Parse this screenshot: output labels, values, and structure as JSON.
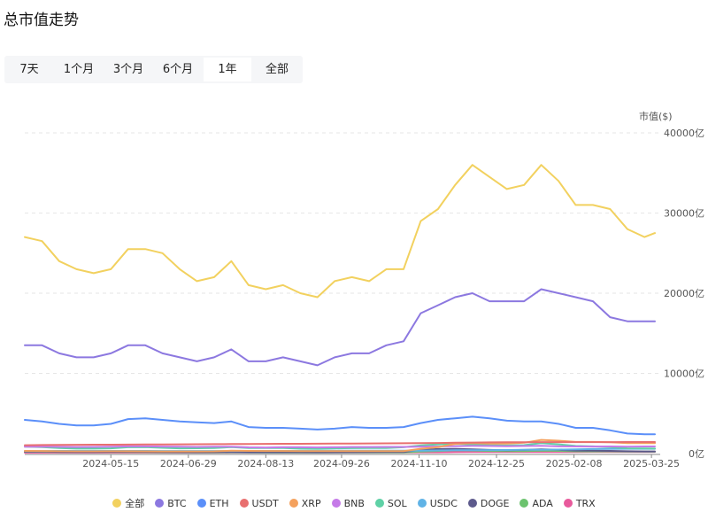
{
  "header": {
    "title": "总市值走势"
  },
  "tabs": [
    {
      "label": "7天",
      "active": false
    },
    {
      "label": "1个月",
      "active": false
    },
    {
      "label": "3个月",
      "active": false
    },
    {
      "label": "6个月",
      "active": false
    },
    {
      "label": "1年",
      "active": true
    },
    {
      "label": "全部",
      "active": false
    }
  ],
  "chart_data": {
    "type": "line",
    "ylabel": "市值($)",
    "ylim": [
      0,
      40000
    ],
    "yticks": [
      "0亿",
      "10000亿",
      "20000亿",
      "30000亿",
      "40000亿"
    ],
    "x_tick_labels": [
      "2024-05-15",
      "2024-06-29",
      "2024-08-13",
      "2024-09-26",
      "2024-11-10",
      "2024-12-25",
      "2025-02-08",
      "2025-03-25"
    ],
    "x": [
      "2024-03-26",
      "2024-04-05",
      "2024-04-15",
      "2024-04-25",
      "2024-05-05",
      "2024-05-15",
      "2024-05-25",
      "2024-06-04",
      "2024-06-14",
      "2024-06-24",
      "2024-07-04",
      "2024-07-14",
      "2024-07-24",
      "2024-08-03",
      "2024-08-13",
      "2024-08-23",
      "2024-09-02",
      "2024-09-12",
      "2024-09-22",
      "2024-10-02",
      "2024-10-12",
      "2024-10-22",
      "2024-11-01",
      "2024-11-11",
      "2024-11-21",
      "2024-12-01",
      "2024-12-11",
      "2024-12-21",
      "2024-12-31",
      "2025-01-10",
      "2025-01-20",
      "2025-01-30",
      "2025-02-09",
      "2025-02-19",
      "2025-03-01",
      "2025-03-11",
      "2025-03-21",
      "2025-03-27"
    ],
    "grid": true,
    "legend_position": "bottom",
    "series": [
      {
        "name": "全部",
        "color": "#f2d15f",
        "values": [
          27000,
          26500,
          24000,
          23000,
          22500,
          23000,
          25500,
          25500,
          25000,
          23000,
          21500,
          22000,
          24000,
          21000,
          20500,
          21000,
          20000,
          19500,
          21500,
          22000,
          21500,
          23000,
          23000,
          29000,
          30500,
          33500,
          36000,
          34500,
          33000,
          33500,
          36000,
          34000,
          31000,
          31000,
          30500,
          28000,
          27000,
          27500
        ]
      },
      {
        "name": "BTC",
        "color": "#8c78e0",
        "values": [
          13500,
          13500,
          12500,
          12000,
          12000,
          12500,
          13500,
          13500,
          12500,
          12000,
          11500,
          12000,
          13000,
          11500,
          11500,
          12000,
          11500,
          11000,
          12000,
          12500,
          12500,
          13500,
          14000,
          17500,
          18500,
          19500,
          20000,
          19000,
          19000,
          19000,
          20500,
          20000,
          19500,
          19000,
          17000,
          16500,
          16500,
          16500
        ]
      },
      {
        "name": "ETH",
        "color": "#5b8ff9",
        "values": [
          4200,
          4000,
          3700,
          3500,
          3500,
          3700,
          4300,
          4400,
          4200,
          4000,
          3900,
          3800,
          4000,
          3300,
          3200,
          3200,
          3100,
          3000,
          3100,
          3300,
          3200,
          3200,
          3300,
          3800,
          4200,
          4400,
          4600,
          4400,
          4100,
          4000,
          4000,
          3700,
          3200,
          3200,
          2900,
          2500,
          2400,
          2400
        ]
      },
      {
        "name": "USDT",
        "color": "#e86f6f",
        "values": [
          1040,
          1060,
          1080,
          1090,
          1100,
          1110,
          1120,
          1130,
          1140,
          1150,
          1160,
          1170,
          1180,
          1190,
          1200,
          1210,
          1220,
          1230,
          1240,
          1250,
          1260,
          1270,
          1280,
          1300,
          1320,
          1350,
          1370,
          1390,
          1400,
          1410,
          1420,
          1420,
          1430,
          1430,
          1430,
          1440,
          1440,
          1440
        ]
      },
      {
        "name": "XRP",
        "color": "#f4a15d",
        "values": [
          330,
          320,
          290,
          280,
          280,
          290,
          290,
          280,
          270,
          260,
          260,
          280,
          350,
          330,
          320,
          320,
          300,
          300,
          310,
          310,
          300,
          300,
          310,
          600,
          800,
          1200,
          1300,
          1250,
          1250,
          1350,
          1700,
          1600,
          1450,
          1450,
          1400,
          1300,
          1300,
          1300
        ]
      },
      {
        "name": "BNB",
        "color": "#c57ae8",
        "values": [
          850,
          870,
          840,
          820,
          830,
          850,
          900,
          900,
          870,
          860,
          830,
          850,
          860,
          770,
          750,
          780,
          780,
          760,
          790,
          820,
          820,
          830,
          830,
          860,
          880,
          920,
          950,
          940,
          920,
          940,
          960,
          900,
          880,
          870,
          880,
          860,
          880,
          880
        ]
      },
      {
        "name": "SOL",
        "color": "#5fd1a6",
        "values": [
          850,
          800,
          700,
          620,
          620,
          650,
          780,
          800,
          720,
          650,
          660,
          700,
          800,
          700,
          680,
          700,
          620,
          600,
          650,
          670,
          680,
          700,
          780,
          1000,
          1150,
          1200,
          1150,
          1050,
          1000,
          1050,
          1300,
          1150,
          950,
          900,
          800,
          650,
          630,
          620
        ]
      },
      {
        "name": "USDC",
        "color": "#60b3e6",
        "values": [
          320,
          320,
          330,
          330,
          330,
          330,
          330,
          330,
          320,
          320,
          320,
          320,
          320,
          330,
          330,
          330,
          340,
          340,
          350,
          350,
          350,
          350,
          350,
          370,
          390,
          410,
          420,
          430,
          440,
          460,
          480,
          500,
          530,
          560,
          580,
          600,
          600,
          600
        ]
      },
      {
        "name": "DOGE",
        "color": "#5d5a8c",
        "values": [
          250,
          260,
          210,
          200,
          200,
          220,
          230,
          220,
          200,
          180,
          170,
          180,
          200,
          160,
          150,
          160,
          150,
          140,
          150,
          170,
          180,
          190,
          200,
          450,
          560,
          590,
          530,
          450,
          420,
          450,
          520,
          460,
          380,
          350,
          330,
          290,
          270,
          260
        ]
      },
      {
        "name": "ADA",
        "color": "#6cc36f",
        "values": [
          220,
          220,
          200,
          190,
          190,
          190,
          190,
          180,
          160,
          150,
          140,
          140,
          150,
          130,
          120,
          120,
          120,
          120,
          130,
          130,
          130,
          130,
          130,
          250,
          320,
          400,
          380,
          320,
          300,
          300,
          360,
          330,
          280,
          260,
          280,
          240,
          240,
          230
        ]
      },
      {
        "name": "TRX",
        "color": "#e85a9c",
        "values": [
          110,
          110,
          105,
          105,
          105,
          110,
          110,
          105,
          105,
          105,
          110,
          115,
          120,
          130,
          135,
          140,
          140,
          140,
          140,
          145,
          145,
          145,
          145,
          150,
          160,
          180,
          200,
          190,
          190,
          195,
          200,
          200,
          200,
          210,
          210,
          210,
          210,
          210
        ]
      }
    ]
  }
}
